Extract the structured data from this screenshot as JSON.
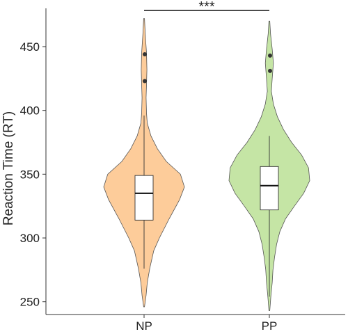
{
  "chart_data": {
    "type": "violin",
    "ylabel": "Reaction Time (RT)",
    "ylim": [
      240,
      480
    ],
    "yticks": [
      250,
      300,
      350,
      400,
      450
    ],
    "xticks": [
      "NP",
      "PP"
    ],
    "grid": false,
    "significance": {
      "between": [
        "NP",
        "PP"
      ],
      "label": "***"
    },
    "series": [
      {
        "name": "NP",
        "color": "#FDCC9A",
        "box": {
          "whisker_low": 276,
          "q1": 314,
          "median": 335,
          "q3": 349,
          "whisker_high": 396
        },
        "outliers": [
          444,
          423
        ],
        "density": [
          [
            246,
            0.01
          ],
          [
            255,
            0.05
          ],
          [
            265,
            0.08
          ],
          [
            276,
            0.14
          ],
          [
            290,
            0.24
          ],
          [
            300,
            0.38
          ],
          [
            315,
            0.62
          ],
          [
            330,
            0.88
          ],
          [
            340,
            1.0
          ],
          [
            350,
            0.9
          ],
          [
            360,
            0.55
          ],
          [
            370,
            0.33
          ],
          [
            380,
            0.17
          ],
          [
            390,
            0.08
          ],
          [
            398,
            0.06
          ],
          [
            410,
            0.05
          ],
          [
            420,
            0.06
          ],
          [
            432,
            0.07
          ],
          [
            445,
            0.06
          ],
          [
            460,
            0.03
          ],
          [
            472,
            0.01
          ]
        ]
      },
      {
        "name": "PP",
        "color": "#C5E5A5",
        "box": {
          "whisker_low": 254,
          "q1": 322,
          "median": 341,
          "q3": 356,
          "whisker_high": 380
        },
        "outliers": [
          443,
          431
        ],
        "density": [
          [
            243,
            0.01
          ],
          [
            255,
            0.04
          ],
          [
            265,
            0.07
          ],
          [
            275,
            0.09
          ],
          [
            285,
            0.13
          ],
          [
            295,
            0.18
          ],
          [
            305,
            0.26
          ],
          [
            315,
            0.4
          ],
          [
            325,
            0.62
          ],
          [
            335,
            0.85
          ],
          [
            345,
            1.0
          ],
          [
            355,
            0.97
          ],
          [
            365,
            0.8
          ],
          [
            375,
            0.55
          ],
          [
            385,
            0.35
          ],
          [
            395,
            0.2
          ],
          [
            405,
            0.1
          ],
          [
            415,
            0.05
          ],
          [
            425,
            0.07
          ],
          [
            437,
            0.1
          ],
          [
            448,
            0.07
          ],
          [
            460,
            0.03
          ],
          [
            470,
            0.01
          ]
        ]
      }
    ]
  }
}
